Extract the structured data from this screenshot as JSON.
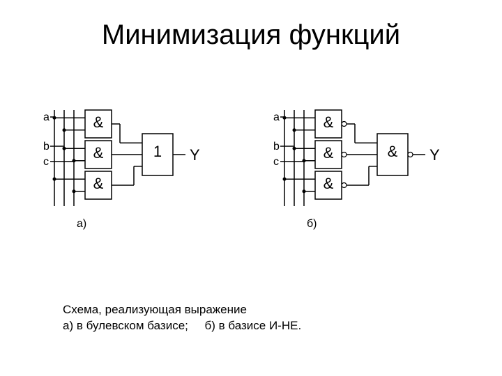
{
  "title": "Минимизация функций",
  "caption_line1": "Схема, реализующая выражение",
  "caption_line2_a": "а) в булевском базисе;",
  "caption_line2_b": "б) в базисе И-НЕ.",
  "diagram": {
    "stroke": "#000000",
    "bg": "#ffffff",
    "input_labels": [
      "a",
      "b",
      "c"
    ],
    "gate_symbol_and": "&",
    "gate_symbol_or": "1",
    "output_label": "Y",
    "sublabel_a": "а)",
    "sublabel_b": "б)",
    "font_size_label": 16,
    "font_size_symbol": 22,
    "font_size_output": 22,
    "font_size_sublabel": 16,
    "circuit_a": {
      "gates_col1": 3,
      "merge_gate": "or",
      "invert_outputs": false
    },
    "circuit_b": {
      "gates_col1": 3,
      "merge_gate": "and",
      "invert_outputs": true
    },
    "gate_w": 38,
    "gate_h": 40,
    "gate_gap": 4,
    "merge_w": 44,
    "merge_h": 60,
    "bubble_r": 3.5
  }
}
